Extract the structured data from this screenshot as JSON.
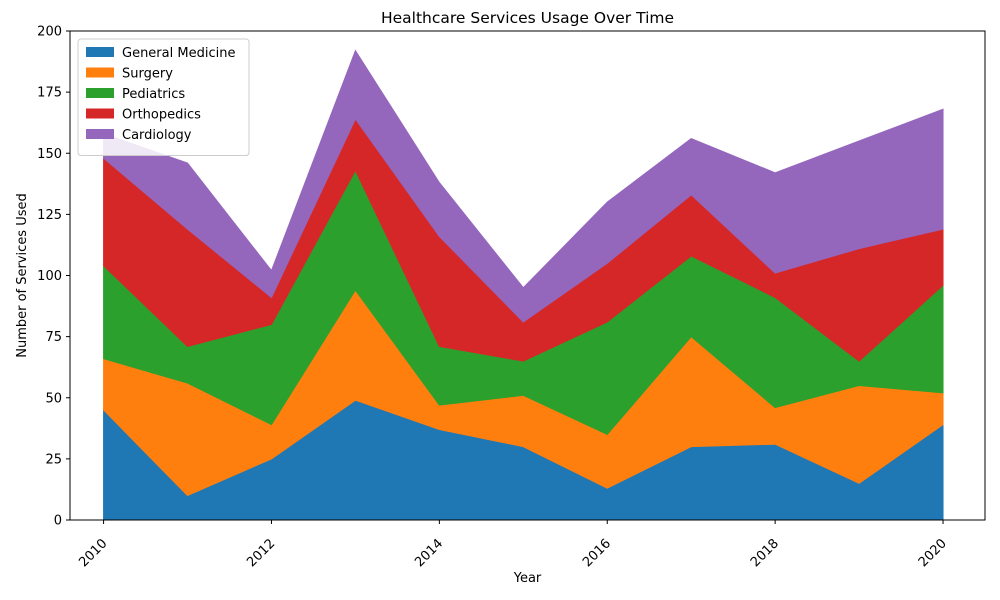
{
  "chart_data": {
    "type": "area",
    "stacked": true,
    "title": "Healthcare Services Usage Over Time",
    "xlabel": "Year",
    "ylabel": "Number of Services Used",
    "x": [
      2010,
      2011,
      2012,
      2013,
      2014,
      2015,
      2016,
      2017,
      2018,
      2019,
      2020
    ],
    "xlim": [
      2009.6,
      2020.5
    ],
    "ylim": [
      0,
      200
    ],
    "xticks": [
      2010,
      2012,
      2014,
      2016,
      2018,
      2020
    ],
    "yticks": [
      0,
      25,
      50,
      75,
      100,
      125,
      150,
      175,
      200
    ],
    "x_tick_rotation_deg": 45,
    "grid": false,
    "legend_position": "upper-left",
    "series": [
      {
        "name": "General Medicine",
        "color": "#1f77b4",
        "values": [
          45,
          10,
          25,
          49,
          37,
          30,
          13,
          30,
          31,
          15,
          39
        ]
      },
      {
        "name": "Surgery",
        "color": "#ff7f0e",
        "values": [
          21,
          46,
          14,
          45,
          10,
          21,
          22,
          45,
          15,
          40,
          13
        ]
      },
      {
        "name": "Pediatrics",
        "color": "#2ca02c",
        "values": [
          38,
          15,
          41,
          49,
          24,
          14,
          46,
          33,
          45,
          10,
          44
        ]
      },
      {
        "name": "Orthopedics",
        "color": "#d62728",
        "values": [
          44,
          48,
          11,
          21,
          45,
          16,
          24,
          25,
          10,
          46,
          23
        ]
      },
      {
        "name": "Cardiology",
        "color": "#9467bd",
        "values": [
          10,
          27,
          11,
          28,
          22,
          14,
          25,
          23,
          41,
          44,
          49
        ]
      }
    ]
  }
}
